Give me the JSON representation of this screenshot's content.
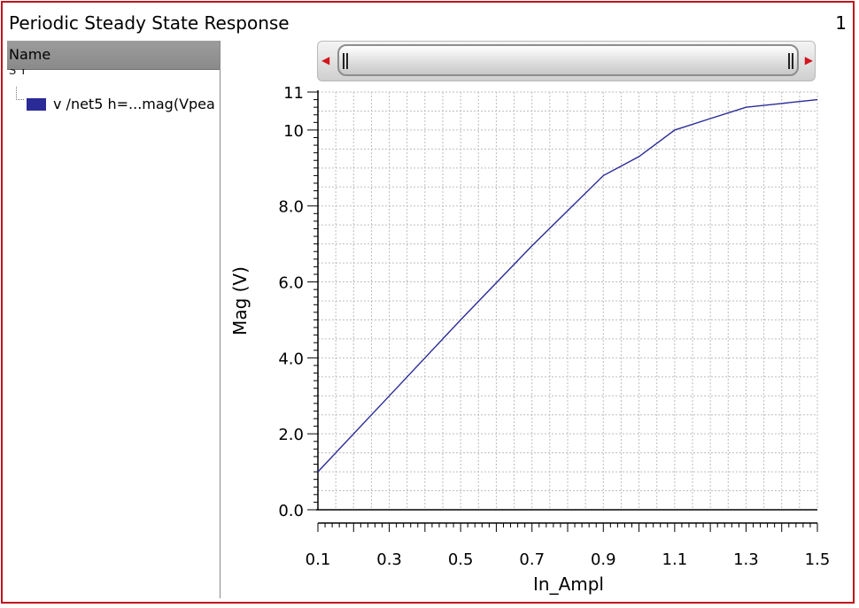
{
  "window": {
    "title": "Periodic Steady State Response",
    "page_number": "1"
  },
  "browser": {
    "column_header": "Name",
    "partial_row": "S         Y         ",
    "signal_label": "v /net5 h=...mag(Vpea"
  },
  "colors": {
    "frame": "#c0141c",
    "series": "#2b2b97",
    "grid": "#bdbdbd"
  },
  "icons": {
    "scroll_left": "left-arrow-icon",
    "scroll_right": "right-arrow-icon"
  },
  "chart_data": {
    "type": "line",
    "xlabel": "In_Ampl",
    "ylabel": "Mag (V)",
    "xlim": [
      0.1,
      1.5
    ],
    "ylim": [
      0.0,
      11.0
    ],
    "x_ticks": [
      "0.1",
      "0.3",
      "0.5",
      "0.7",
      "0.9",
      "1.1",
      "1.3",
      "1.5"
    ],
    "y_ticks": [
      "0.0",
      "2.0",
      "4.0",
      "6.0",
      "8.0",
      "10",
      "11"
    ],
    "y_tick_values": [
      0,
      2,
      4,
      6,
      8,
      10,
      11
    ],
    "grid": true,
    "series": [
      {
        "x": [
          0.1,
          0.3,
          0.5,
          0.7,
          0.9,
          1.0,
          1.1,
          1.2,
          1.3,
          1.4,
          1.5
        ],
        "y": [
          1.0,
          3.0,
          5.0,
          6.95,
          8.8,
          9.3,
          10.0,
          10.3,
          10.6,
          10.7,
          10.8
        ]
      }
    ]
  }
}
